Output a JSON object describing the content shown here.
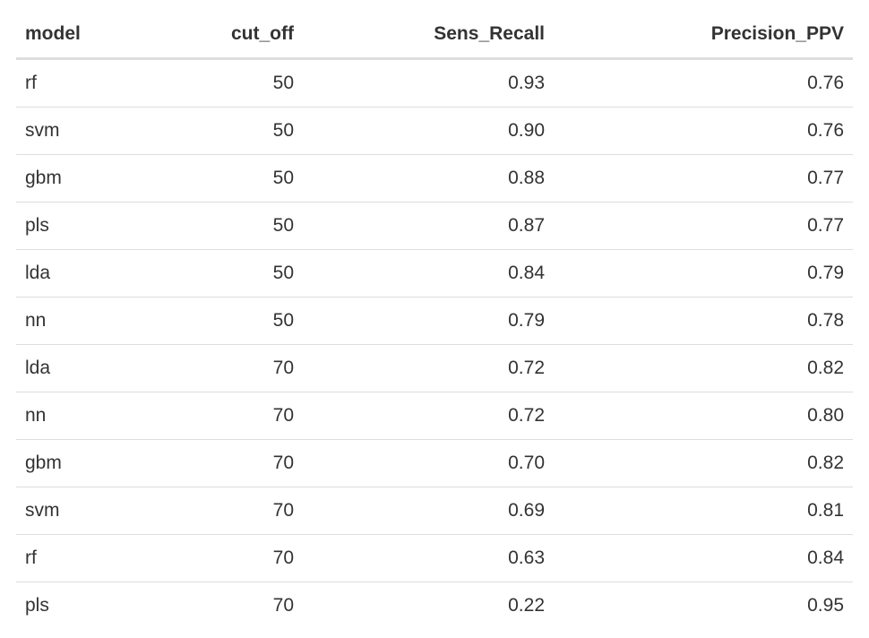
{
  "chart_data": {
    "type": "table",
    "columns": [
      "model",
      "cut_off",
      "Sens_Recall",
      "Precision_PPV"
    ],
    "rows": [
      [
        "rf",
        "50",
        "0.93",
        "0.76"
      ],
      [
        "svm",
        "50",
        "0.90",
        "0.76"
      ],
      [
        "gbm",
        "50",
        "0.88",
        "0.77"
      ],
      [
        "pls",
        "50",
        "0.87",
        "0.77"
      ],
      [
        "lda",
        "50",
        "0.84",
        "0.79"
      ],
      [
        "nn",
        "50",
        "0.79",
        "0.78"
      ],
      [
        "lda",
        "70",
        "0.72",
        "0.82"
      ],
      [
        "nn",
        "70",
        "0.72",
        "0.80"
      ],
      [
        "gbm",
        "70",
        "0.70",
        "0.82"
      ],
      [
        "svm",
        "70",
        "0.69",
        "0.81"
      ],
      [
        "rf",
        "70",
        "0.63",
        "0.84"
      ],
      [
        "pls",
        "70",
        "0.22",
        "0.95"
      ]
    ]
  },
  "colors": {
    "text": "#333333",
    "header_rule": "#dddddd",
    "row_rule": "#dddddd",
    "background": "#ffffff"
  }
}
